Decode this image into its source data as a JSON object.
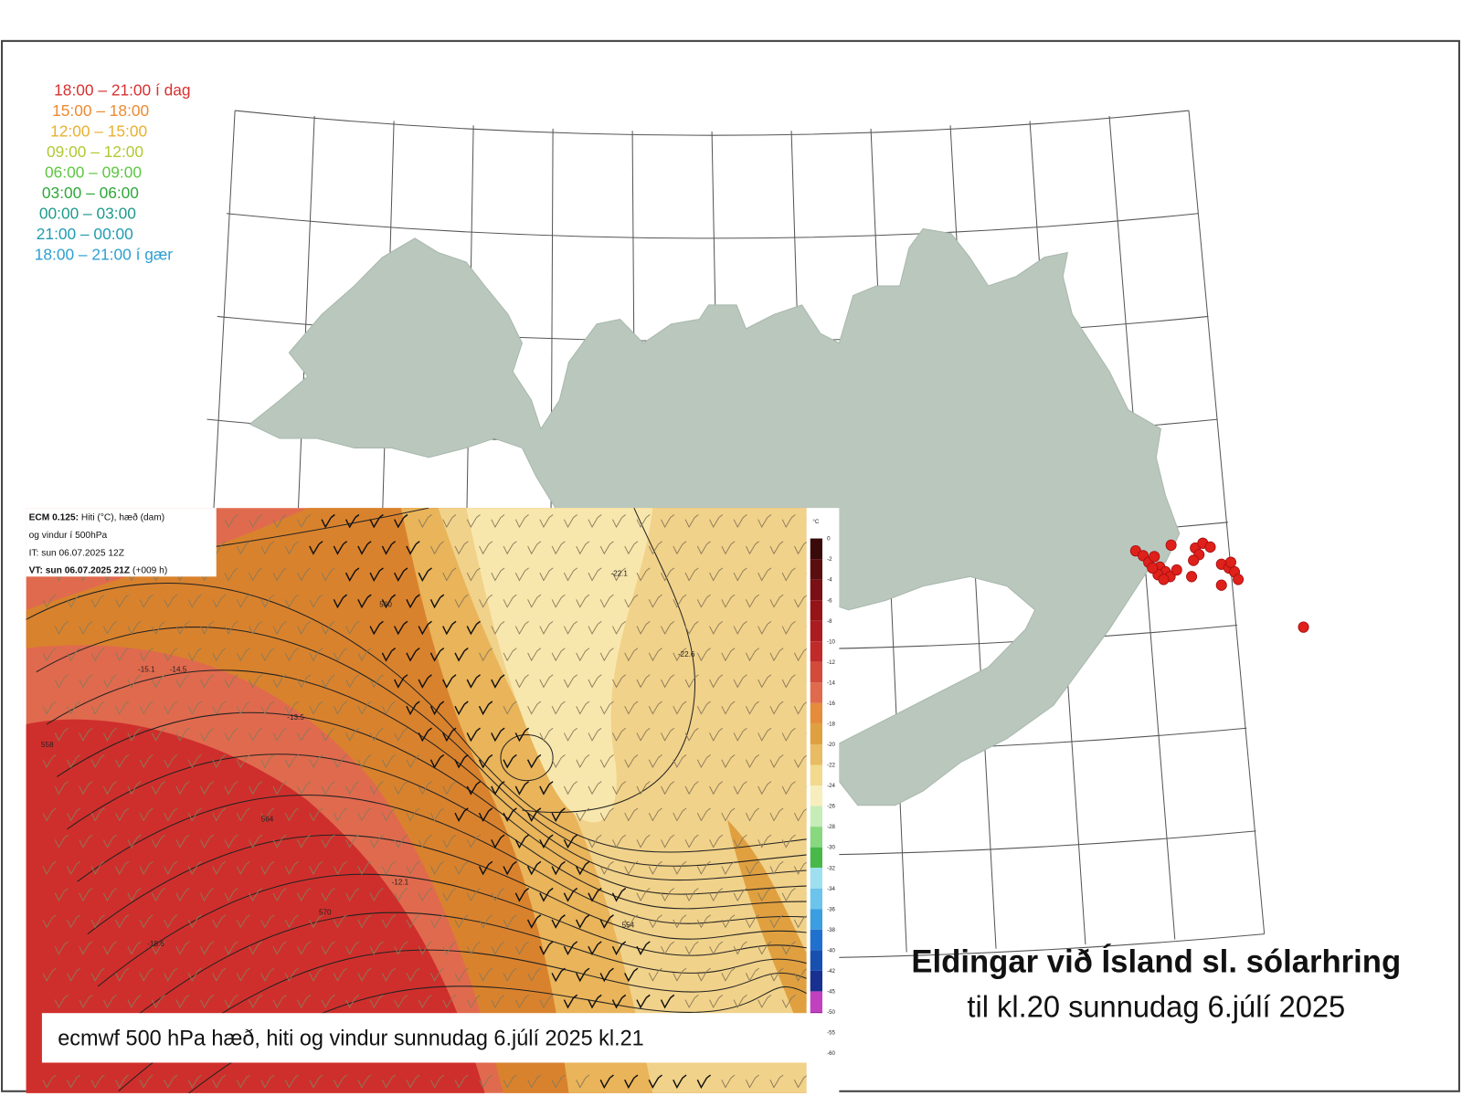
{
  "legend": [
    {
      "label": "18:00 – 21:00 í dag",
      "color": "#d93030"
    },
    {
      "label": "15:00 – 18:00",
      "color": "#ee8a30"
    },
    {
      "label": "12:00 – 15:00",
      "color": "#e8b030"
    },
    {
      "label": "09:00 – 12:00",
      "color": "#b2c832"
    },
    {
      "label": "06:00 – 09:00",
      "color": "#5cc840"
    },
    {
      "label": "03:00 – 06:00",
      "color": "#2ea83a"
    },
    {
      "label": "00:00 – 03:00",
      "color": "#1f9a8c"
    },
    {
      "label": "21:00 – 00:00",
      "color": "#1f9cb0"
    },
    {
      "label": "18:00 – 21:00 í gær",
      "color": "#2d9fd2"
    }
  ],
  "title": "Eldingar við Ísland sl. sólarhring",
  "subtitle": "til kl.20 sunnudag 6.júlí 2025",
  "inset": {
    "header": [
      {
        "bold": "ECM 0.125:",
        "text": " Hiti (°C), hæð (dam)"
      },
      {
        "bold": "",
        "text": "og vindur í 500hPa"
      },
      {
        "bold": "",
        "text": "IT: sun 06.07.2025 12Z"
      },
      {
        "bold": "VT: sun 06.07.2025 21Z",
        "text": " (+009 h)"
      }
    ],
    "caption": "ecmwf 500 hPa hæð, hiti og vindur sunnudag 6.júlí 2025 kl.21",
    "colorbar": {
      "unit": "°C",
      "ticks": [
        "0",
        "-2",
        "-4",
        "-6",
        "-8",
        "-10",
        "-12",
        "-14",
        "-16",
        "-18",
        "-20",
        "-22",
        "-24",
        "-26",
        "-28",
        "-30",
        "-32",
        "-34",
        "-36",
        "-38",
        "-40",
        "-42",
        "-45",
        "-50",
        "-55",
        "-60"
      ]
    },
    "contour_labels": [
      "-22.1",
      "-22.6",
      "-15.1",
      "-14.5",
      "-13.5",
      "564",
      "570",
      "554",
      "-18.6",
      "-12.1",
      "560",
      "558"
    ]
  }
}
